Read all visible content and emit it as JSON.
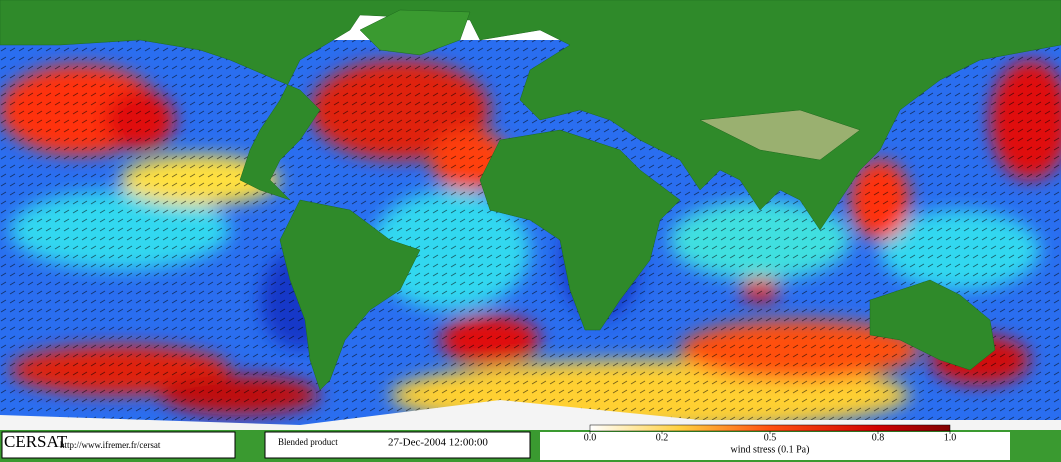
{
  "header": {
    "logo": "CERSAT",
    "url": "http://www.ifremer.fr/cersat",
    "product": "Blended product",
    "date": "27-Dec-2004 12:00:00"
  },
  "colorbar": {
    "range": [
      0,
      1
    ],
    "ticks": [
      {
        "value": 0,
        "label": "0.0"
      },
      0.2,
      0.5,
      0.8,
      {
        "value": 1,
        "label": "1.0"
      }
    ],
    "label": "wind stress (0.1 Pa)"
  }
}
